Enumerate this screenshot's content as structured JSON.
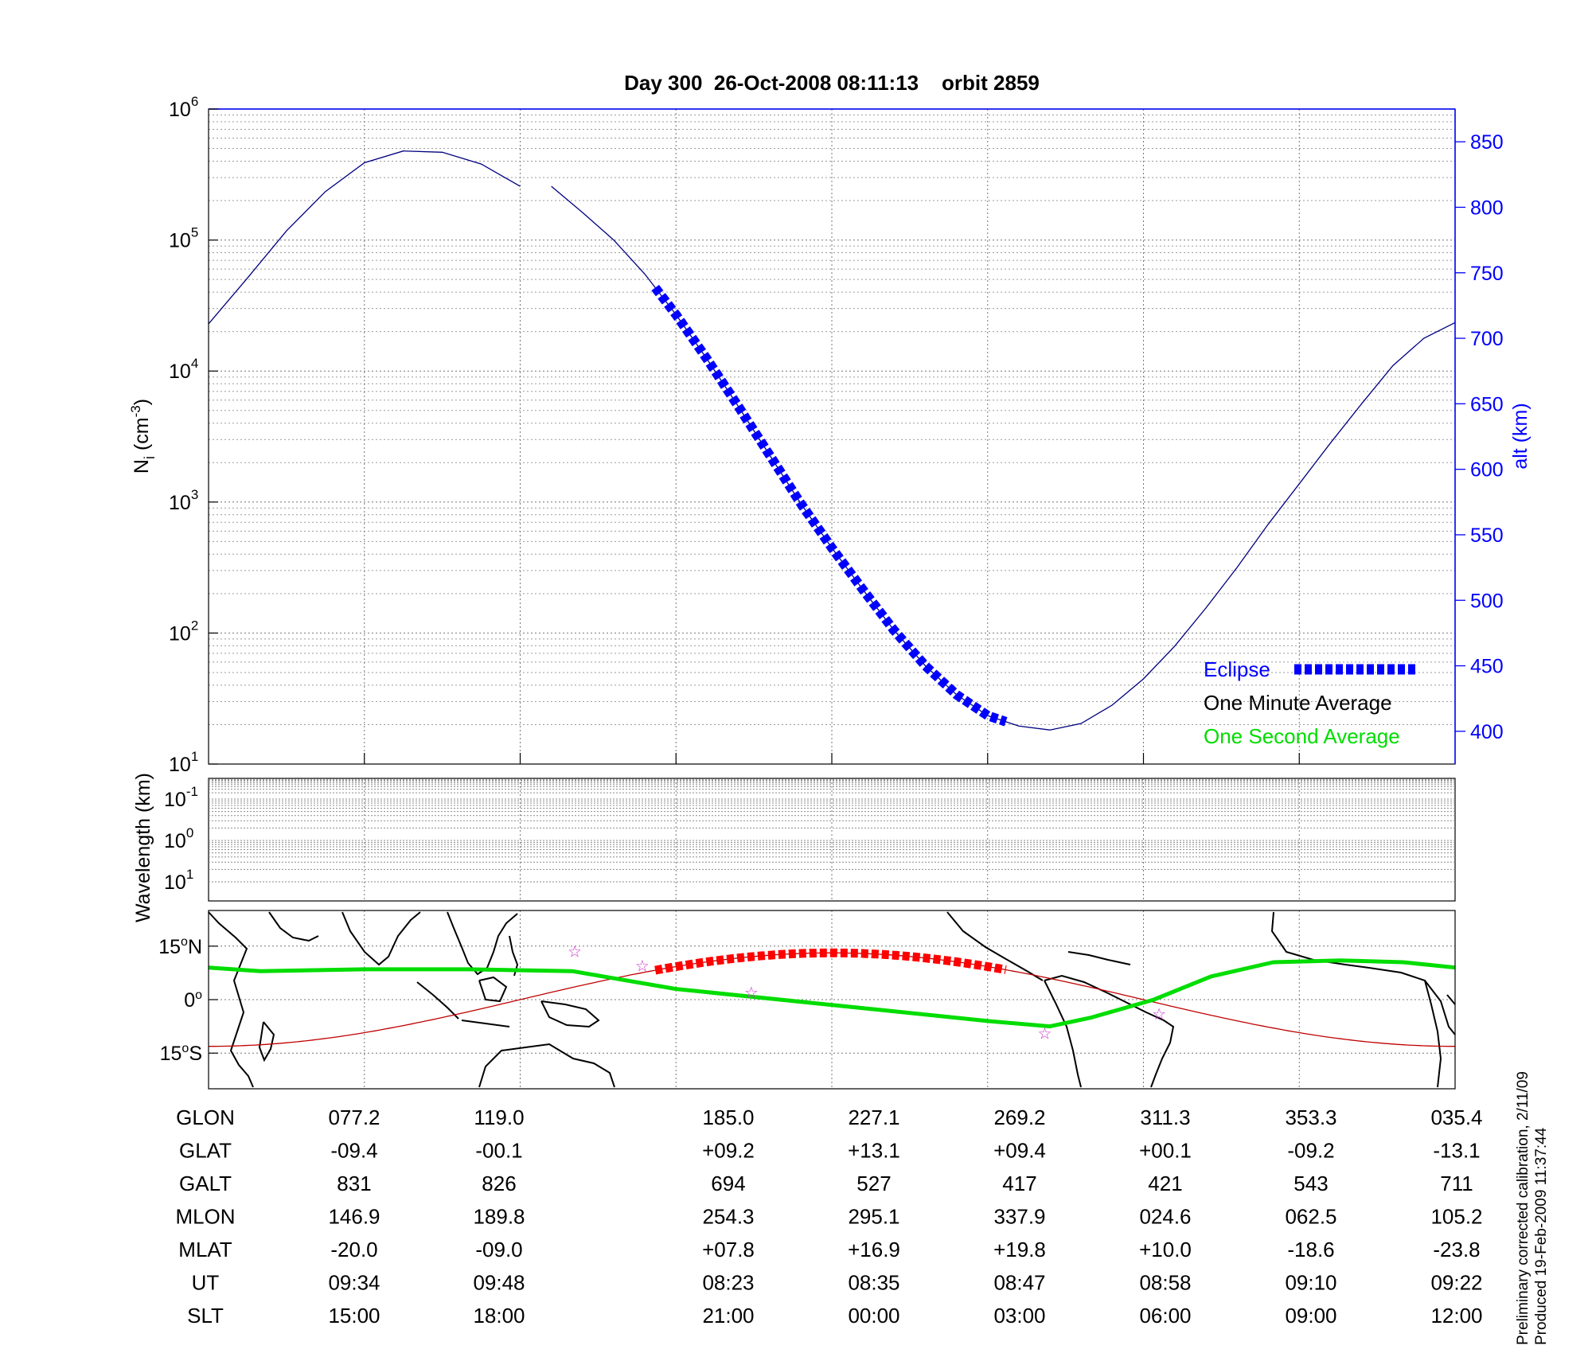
{
  "title": "Day 300  26-Oct-2008 08:11:13    orbit 2859",
  "chart_data": [
    {
      "type": "line",
      "panel": "density-altitude",
      "ylabel_left": {
        "base": "N",
        "sub": "i",
        "unit": " (cm",
        "unit_sup": "-3",
        "close": ")"
      },
      "ylabel_right": "alt (km)",
      "y_left_scale": "log",
      "y_left_lim": [
        10,
        1000000
      ],
      "y_left_ticks": [
        {
          "base": "10",
          "exp": "1",
          "value": 10
        },
        {
          "base": "10",
          "exp": "2",
          "value": 100
        },
        {
          "base": "10",
          "exp": "3",
          "value": 1000
        },
        {
          "base": "10",
          "exp": "4",
          "value": 10000
        },
        {
          "base": "10",
          "exp": "5",
          "value": 100000
        },
        {
          "base": "10",
          "exp": "6",
          "value": 1000000
        }
      ],
      "y_right_lim": [
        375,
        875
      ],
      "y_right_ticks": [
        "400",
        "450",
        "500",
        "550",
        "600",
        "650",
        "700",
        "750",
        "800",
        "850"
      ],
      "grid": true,
      "legend": {
        "placement": "bottom-right",
        "entries": [
          {
            "label": "Eclipse",
            "color": "#0000ff"
          },
          {
            "label": "One Minute Average",
            "color": "#000000"
          },
          {
            "label": "One Second Average",
            "color": "#00dd00"
          }
        ]
      },
      "x_ticks_slt": [
        "15:00",
        "18:00",
        "21:00",
        "00:00",
        "03:00",
        "06:00",
        "09:00",
        "12:00"
      ],
      "altitude_series": {
        "name": "alt (km)",
        "color": "#000080",
        "segments": [
          {
            "slt": [
              12.0,
              12.75,
              13.5,
              14.25,
              15.0,
              15.75,
              16.5,
              17.25,
              18.0
            ],
            "alt": [
              711,
              746,
              782,
              812,
              834,
              843,
              842,
              833,
              816
            ]
          },
          {
            "slt": [
              18.6,
              19.2,
              19.8,
              20.4,
              21.0,
              21.6,
              22.2,
              22.8,
              23.4,
              24.0,
              24.6,
              25.2,
              25.8,
              26.4,
              27.0,
              27.6,
              28.2,
              28.8,
              29.4,
              30.0,
              30.6,
              31.2,
              31.8,
              32.4,
              33.0,
              33.6,
              34.2,
              34.8,
              35.4,
              36.0
            ],
            "alt": [
              816,
              796,
              775,
              749,
              718,
              684,
              648,
              611,
              574,
              540,
              508,
              477,
              450,
              428,
              412,
              404,
              401,
              406,
              420,
              440,
              465,
              494,
              525,
              558,
              589,
              620,
              650,
              679,
              700,
              712
            ]
          }
        ]
      },
      "eclipse_series": {
        "name": "Eclipse",
        "color": "#0000ff",
        "slt_range": [
          20.6,
          27.35
        ]
      }
    },
    {
      "type": "heatmap",
      "panel": "wavelength",
      "ylabel": "Wavelength (km)",
      "y_scale": "log",
      "y_ticks": [
        {
          "base": "10",
          "exp": "-1"
        },
        {
          "base": "10",
          "exp": "0"
        },
        {
          "base": "10",
          "exp": "1"
        }
      ],
      "values": []
    },
    {
      "type": "line",
      "panel": "ground-track-map",
      "y_ticks": [
        {
          "deg": "15",
          "sym": "o",
          "hemi": "N",
          "value": 15
        },
        {
          "deg": "0",
          "sym": "o",
          "hemi": "",
          "value": 0
        },
        {
          "deg": "15",
          "sym": "o",
          "hemi": "S",
          "value": -15
        }
      ],
      "ylim": [
        -25,
        25
      ],
      "series": [
        {
          "name": "geographic track",
          "color": "#c00000",
          "slt": [
            12.0,
            15.0,
            18.0,
            21.0,
            24.0,
            27.0,
            30.0,
            33.0,
            36.0
          ],
          "lat": [
            -13.1,
            -9.4,
            -0.1,
            9.2,
            13.1,
            9.4,
            0.1,
            -9.2,
            -13.1
          ]
        },
        {
          "name": "magnetic equator",
          "color": "#00dd00",
          "slt": [
            12.0,
            13.0,
            15.0,
            17.0,
            19.0,
            21.0,
            23.0,
            25.0,
            27.0,
            28.2,
            29.0,
            30.2,
            31.3,
            32.5,
            33.8,
            35.0,
            36.0
          ],
          "lat": [
            9,
            8,
            8.5,
            8.5,
            8,
            3,
            0,
            -3,
            -6,
            -7.5,
            -5,
            0,
            6.5,
            10.5,
            11,
            10.5,
            9
          ]
        },
        {
          "name": "eclipse track",
          "color": "#ff0000",
          "slt_range": [
            20.6,
            27.35
          ]
        }
      ],
      "stars": [
        {
          "slt": 20.35,
          "lat": 9.5
        },
        {
          "slt": 19.05,
          "lat": 13.5
        },
        {
          "slt": 22.45,
          "lat": 2
        },
        {
          "slt": 28.1,
          "lat": -9.5
        },
        {
          "slt": 30.3,
          "lat": -4
        }
      ]
    }
  ],
  "table": {
    "labels": [
      "GLON",
      "GLAT",
      "GALT",
      "MLON",
      "MLAT",
      "UT",
      "SLT"
    ],
    "columns": [
      [
        "077.2",
        "-09.4",
        "831",
        "146.9",
        "-20.0",
        "09:34",
        "15:00"
      ],
      [
        "119.0",
        "-00.1",
        "826",
        "189.8",
        "-09.0",
        "09:48",
        "18:00"
      ],
      [
        "185.0",
        "+09.2",
        "694",
        "254.3",
        "+07.8",
        "08:23",
        "21:00"
      ],
      [
        "227.1",
        "+13.1",
        "527",
        "295.1",
        "+16.9",
        "08:35",
        "00:00"
      ],
      [
        "269.2",
        "+09.4",
        "417",
        "337.9",
        "+19.8",
        "08:47",
        "03:00"
      ],
      [
        "311.3",
        "+00.1",
        "421",
        "024.6",
        "+10.0",
        "08:58",
        "06:00"
      ],
      [
        "353.3",
        "-09.2",
        "543",
        "062.5",
        "-18.6",
        "09:10",
        "09:00"
      ],
      [
        "035.4",
        "-13.1",
        "711",
        "105.2",
        "-23.8",
        "09:22",
        "12:00"
      ]
    ]
  },
  "footer": {
    "calibration": "Preliminary corrected calibration, 2/11/09",
    "produced": "Produced 19-Feb-2009 11:37:44"
  }
}
